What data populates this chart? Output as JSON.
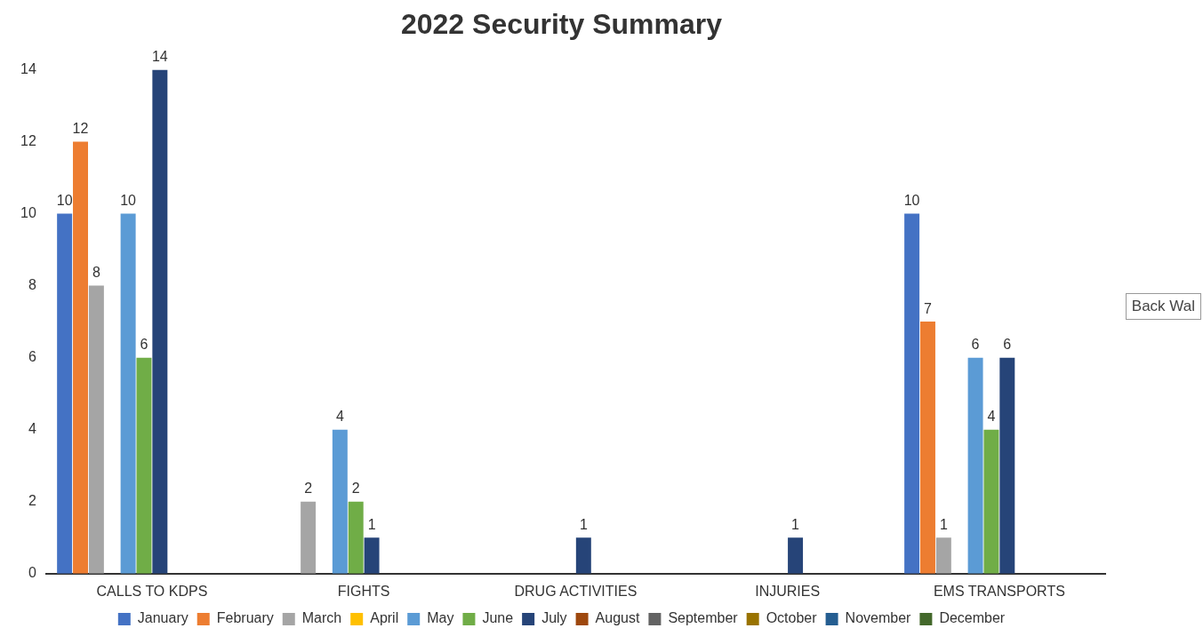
{
  "chart_data": {
    "type": "bar",
    "title": "2022 Security Summary",
    "categories": [
      "CALLS TO KDPS",
      "FIGHTS",
      "DRUG ACTIVITIES",
      "INJURIES",
      "EMS TRANSPORTS"
    ],
    "series": [
      {
        "name": "January",
        "color": "#4472c4",
        "values": [
          10,
          null,
          null,
          null,
          10
        ]
      },
      {
        "name": "February",
        "color": "#ed7d31",
        "values": [
          12,
          null,
          null,
          null,
          7
        ]
      },
      {
        "name": "March",
        "color": "#a5a5a5",
        "values": [
          8,
          2,
          null,
          null,
          1
        ]
      },
      {
        "name": "April",
        "color": "#ffc000",
        "values": [
          null,
          null,
          null,
          null,
          null
        ]
      },
      {
        "name": "May",
        "color": "#5b9bd5",
        "values": [
          10,
          4,
          null,
          null,
          6
        ]
      },
      {
        "name": "June",
        "color": "#70ad47",
        "values": [
          6,
          2,
          null,
          null,
          4
        ]
      },
      {
        "name": "July",
        "color": "#264478",
        "values": [
          14,
          1,
          1,
          1,
          6
        ]
      },
      {
        "name": "August",
        "color": "#9e480e",
        "values": [
          null,
          null,
          null,
          null,
          null
        ]
      },
      {
        "name": "September",
        "color": "#636363",
        "values": [
          null,
          null,
          null,
          null,
          null
        ]
      },
      {
        "name": "October",
        "color": "#997300",
        "values": [
          null,
          null,
          null,
          null,
          null
        ]
      },
      {
        "name": "November",
        "color": "#255e91",
        "values": [
          null,
          null,
          null,
          null,
          null
        ]
      },
      {
        "name": "December",
        "color": "#43682b",
        "values": [
          null,
          null,
          null,
          null,
          null
        ]
      }
    ],
    "ylim": [
      0,
      14
    ],
    "yticks": [
      0,
      2,
      4,
      6,
      8,
      10,
      12,
      14
    ],
    "grid": false,
    "legend": "bottom",
    "data_labels": true,
    "annotations": [
      "Back Wal"
    ]
  }
}
